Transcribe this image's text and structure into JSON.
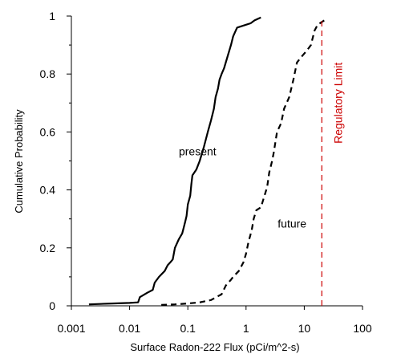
{
  "chart_data": {
    "type": "line",
    "xlabel": "Surface Radon-222 Flux (pCi/m^2-s)",
    "ylabel": "Cumulative Probability",
    "x_scale": "log",
    "xlim": [
      0.001,
      100
    ],
    "ylim": [
      0,
      1
    ],
    "x_ticks": [
      0.001,
      0.01,
      0.1,
      1,
      10,
      100
    ],
    "x_tick_labels": [
      "0.001",
      "0.01",
      "0.1",
      "1",
      "10",
      "100"
    ],
    "y_ticks": [
      0,
      0.2,
      0.4,
      0.6,
      0.8,
      1
    ],
    "y_tick_labels": [
      "0",
      "0.2",
      "0.4",
      "0.6",
      "0.8",
      "1"
    ],
    "grid": false,
    "legend": "none",
    "series": [
      {
        "style": "solid",
        "color": "#000000",
        "points": [
          [
            0.002,
            0.005
          ],
          [
            0.005,
            0.008
          ],
          [
            0.01,
            0.01
          ],
          [
            0.014,
            0.012
          ],
          [
            0.015,
            0.03
          ],
          [
            0.02,
            0.045
          ],
          [
            0.025,
            0.055
          ],
          [
            0.027,
            0.08
          ],
          [
            0.032,
            0.1
          ],
          [
            0.04,
            0.12
          ],
          [
            0.045,
            0.14
          ],
          [
            0.05,
            0.15
          ],
          [
            0.055,
            0.16
          ],
          [
            0.06,
            0.2
          ],
          [
            0.07,
            0.23
          ],
          [
            0.08,
            0.25
          ],
          [
            0.085,
            0.27
          ],
          [
            0.09,
            0.29
          ],
          [
            0.095,
            0.31
          ],
          [
            0.1,
            0.35
          ],
          [
            0.11,
            0.38
          ],
          [
            0.115,
            0.42
          ],
          [
            0.12,
            0.45
          ],
          [
            0.14,
            0.47
          ],
          [
            0.16,
            0.5
          ],
          [
            0.19,
            0.55
          ],
          [
            0.22,
            0.6
          ],
          [
            0.25,
            0.64
          ],
          [
            0.28,
            0.68
          ],
          [
            0.3,
            0.72
          ],
          [
            0.33,
            0.75
          ],
          [
            0.35,
            0.78
          ],
          [
            0.38,
            0.8
          ],
          [
            0.42,
            0.82
          ],
          [
            0.48,
            0.86
          ],
          [
            0.55,
            0.9
          ],
          [
            0.6,
            0.93
          ],
          [
            0.7,
            0.96
          ],
          [
            1.0,
            0.97
          ],
          [
            1.2,
            0.975
          ],
          [
            1.4,
            0.985
          ],
          [
            1.8,
            0.995
          ]
        ]
      },
      {
        "style": "dashed",
        "color": "#000000",
        "points": [
          [
            0.035,
            0.003
          ],
          [
            0.06,
            0.005
          ],
          [
            0.1,
            0.008
          ],
          [
            0.16,
            0.012
          ],
          [
            0.25,
            0.02
          ],
          [
            0.38,
            0.04
          ],
          [
            0.45,
            0.07
          ],
          [
            0.55,
            0.09
          ],
          [
            0.6,
            0.1
          ],
          [
            0.75,
            0.12
          ],
          [
            0.9,
            0.15
          ],
          [
            1.0,
            0.18
          ],
          [
            1.1,
            0.22
          ],
          [
            1.25,
            0.26
          ],
          [
            1.35,
            0.3
          ],
          [
            1.5,
            0.33
          ],
          [
            1.8,
            0.34
          ],
          [
            2.0,
            0.37
          ],
          [
            2.3,
            0.41
          ],
          [
            2.5,
            0.46
          ],
          [
            2.8,
            0.5
          ],
          [
            3.0,
            0.53
          ],
          [
            3.4,
            0.6
          ],
          [
            4.0,
            0.63
          ],
          [
            4.5,
            0.68
          ],
          [
            5.5,
            0.72
          ],
          [
            6.5,
            0.78
          ],
          [
            7.5,
            0.84
          ],
          [
            9.0,
            0.86
          ],
          [
            11.0,
            0.88
          ],
          [
            13.0,
            0.9
          ],
          [
            15.0,
            0.95
          ],
          [
            17.0,
            0.97
          ],
          [
            22.0,
            0.985
          ]
        ]
      }
    ],
    "annotations": [
      {
        "text": "present",
        "x": 0.07,
        "y": 0.52
      },
      {
        "text": "future",
        "x": 3.5,
        "y": 0.27
      }
    ],
    "reference_lines": [
      {
        "orientation": "vertical",
        "x": 20,
        "label": "Regulatory Limit",
        "color": "#cc0000",
        "style": "dashed"
      }
    ]
  }
}
